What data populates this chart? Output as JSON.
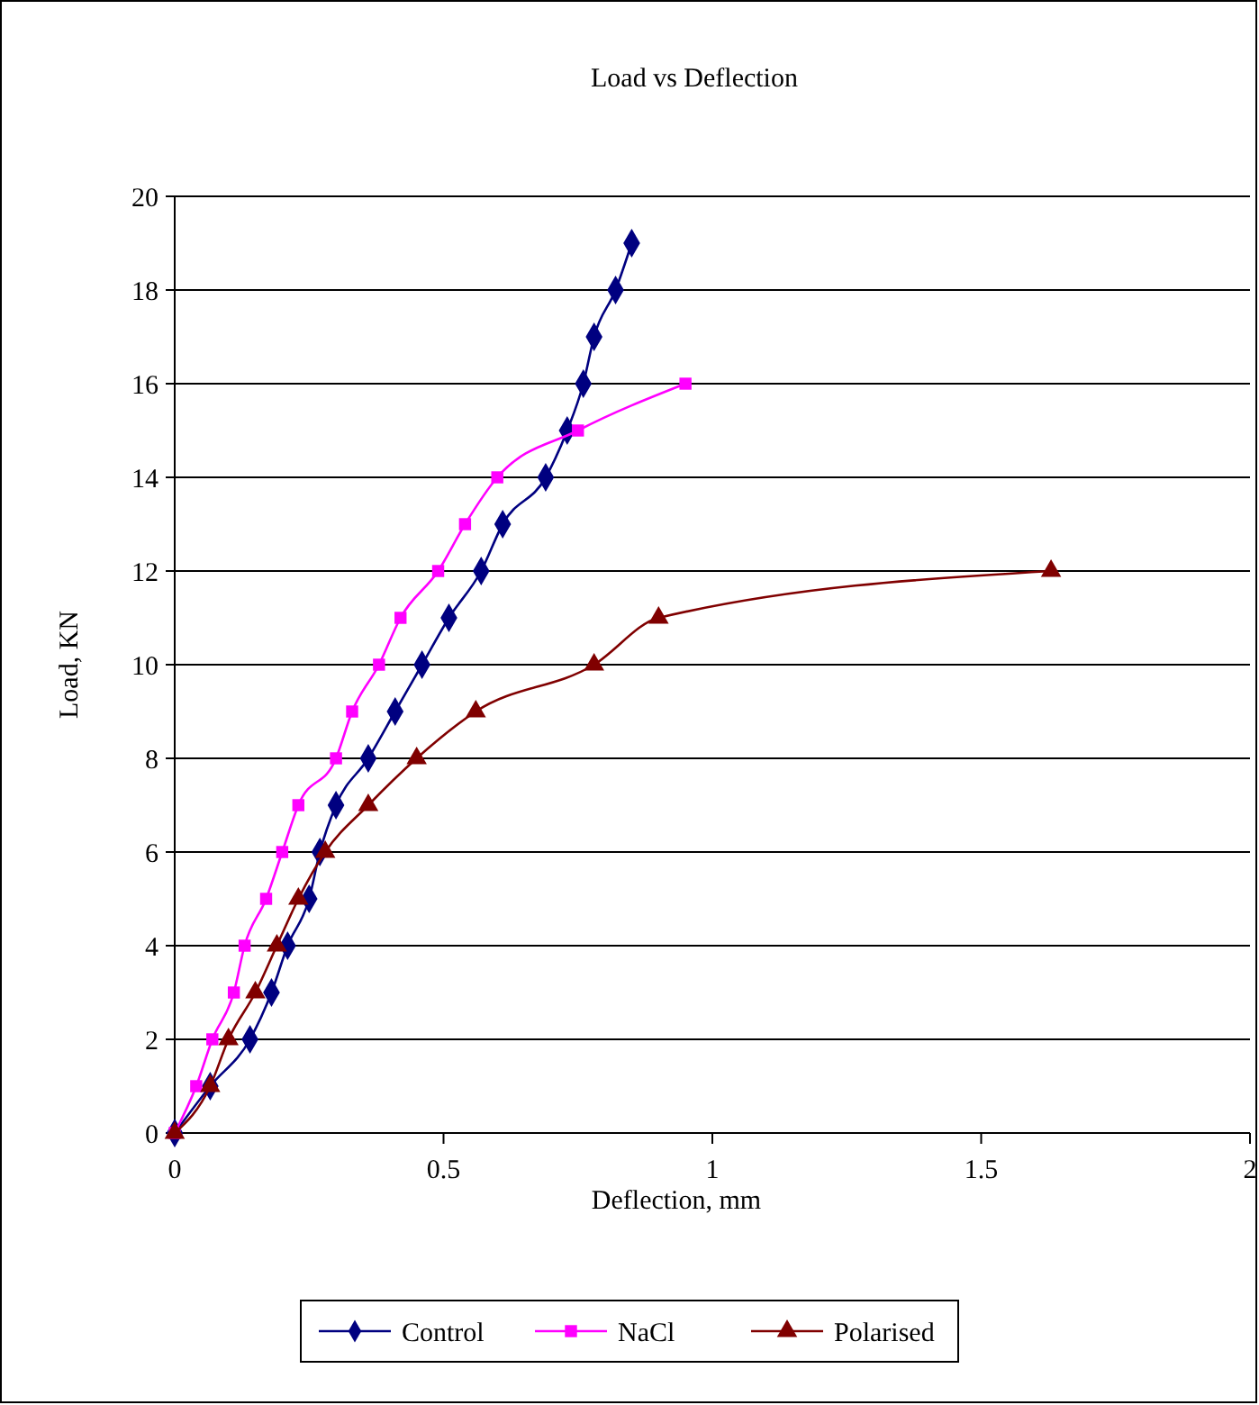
{
  "chart_data": {
    "type": "line",
    "title": "Load vs Deflection",
    "xlabel": "Deflection, mm",
    "ylabel": "Load, KN",
    "xlim": [
      0,
      2
    ],
    "xticks": [
      0,
      0.5,
      1,
      1.5,
      2
    ],
    "ylim": [
      0,
      20
    ],
    "yticks": [
      0,
      2,
      4,
      6,
      8,
      10,
      12,
      14,
      16,
      18,
      20
    ],
    "grid": "y",
    "legend": "bottom",
    "series": [
      {
        "name": "Control",
        "color": "#000080",
        "marker": "diamond",
        "x": [
          0,
          0.066,
          0.14,
          0.18,
          0.21,
          0.25,
          0.27,
          0.3,
          0.36,
          0.41,
          0.46,
          0.51,
          0.57,
          0.61,
          0.69,
          0.73,
          0.76,
          0.78,
          0.82,
          0.85
        ],
        "values": [
          0,
          1,
          2,
          3,
          4,
          5,
          6,
          7,
          8,
          9,
          10,
          11,
          12,
          13,
          14,
          15,
          16,
          17,
          18,
          19
        ]
      },
      {
        "name": "NaCl",
        "color": "#ff00ff",
        "marker": "square",
        "x": [
          0,
          0.04,
          0.07,
          0.11,
          0.13,
          0.17,
          0.2,
          0.23,
          0.3,
          0.33,
          0.38,
          0.42,
          0.49,
          0.54,
          0.6,
          0.75,
          0.95
        ],
        "values": [
          0,
          1,
          2,
          3,
          4,
          5,
          6,
          7,
          8,
          9,
          10,
          11,
          12,
          13,
          14,
          15,
          16
        ]
      },
      {
        "name": "Polarised",
        "color": "#800000",
        "marker": "triangle",
        "x": [
          0,
          0.066,
          0.1,
          0.15,
          0.19,
          0.23,
          0.28,
          0.36,
          0.45,
          0.56,
          0.78,
          0.9,
          1.63
        ],
        "values": [
          0,
          1,
          2,
          3,
          4,
          5,
          6,
          7,
          8,
          9,
          10,
          11,
          12
        ]
      }
    ]
  }
}
